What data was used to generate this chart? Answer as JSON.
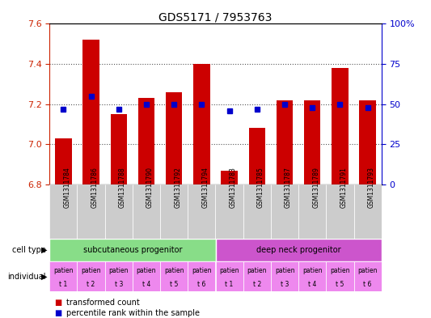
{
  "title": "GDS5171 / 7953763",
  "samples": [
    "GSM1311784",
    "GSM1311786",
    "GSM1311788",
    "GSM1311790",
    "GSM1311792",
    "GSM1311794",
    "GSM1311783",
    "GSM1311785",
    "GSM1311787",
    "GSM1311789",
    "GSM1311791",
    "GSM1311793"
  ],
  "bar_values": [
    7.03,
    7.52,
    7.15,
    7.23,
    7.26,
    7.4,
    6.87,
    7.08,
    7.22,
    7.22,
    7.38,
    7.22
  ],
  "blue_values": [
    47,
    55,
    47,
    50,
    50,
    50,
    46,
    47,
    50,
    48,
    50,
    48
  ],
  "ylim_left": [
    6.8,
    7.6
  ],
  "ylim_right": [
    0,
    100
  ],
  "yticks_left": [
    6.8,
    7.0,
    7.2,
    7.4,
    7.6
  ],
  "yticks_right": [
    0,
    25,
    50,
    75,
    100
  ],
  "bar_color": "#cc0000",
  "blue_color": "#0000cc",
  "bar_bottom": 6.8,
  "cell_type_groups": [
    {
      "label": "subcutaneous progenitor",
      "start": 0,
      "end": 6,
      "color": "#88dd88"
    },
    {
      "label": "deep neck progenitor",
      "start": 6,
      "end": 12,
      "color": "#cc55cc"
    }
  ],
  "indiv_color": "#ee88ee",
  "cell_type_label": "cell type",
  "individual_label": "individual",
  "legend_bar_label": "transformed count",
  "legend_blue_label": "percentile rank within the sample",
  "title_fontsize": 10,
  "axis_label_color_left": "#cc2200",
  "axis_label_color_right": "#0000cc",
  "grid_color": "#555555",
  "xtick_bg_color": "#cccccc"
}
